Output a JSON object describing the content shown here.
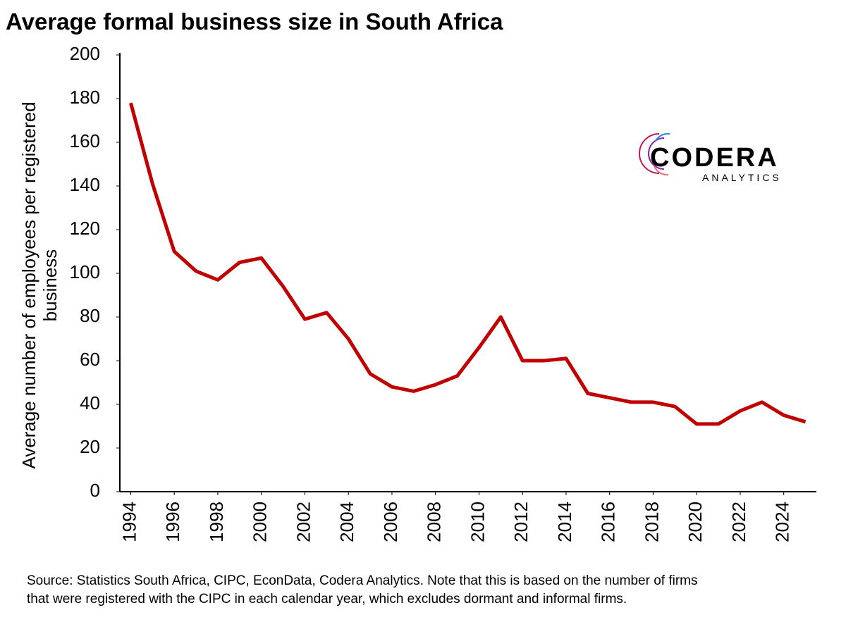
{
  "chart_data": {
    "type": "line",
    "title": "Average formal business size in South Africa",
    "y_label": [
      "Average number of employees per registered",
      "business"
    ],
    "x": [
      1994,
      1995,
      1996,
      1997,
      1998,
      1999,
      2000,
      2001,
      2002,
      2003,
      2004,
      2005,
      2006,
      2007,
      2008,
      2009,
      2010,
      2011,
      2012,
      2013,
      2014,
      2015,
      2016,
      2017,
      2018,
      2019,
      2020,
      2021,
      2022,
      2023,
      2024,
      2025
    ],
    "series": [
      {
        "name": "Average formal business size",
        "color": "#c00000",
        "values": [
          178,
          141,
          110,
          101,
          97,
          105,
          107,
          94,
          79,
          82,
          70,
          54,
          48,
          46,
          49,
          53,
          66,
          80,
          60,
          60,
          61,
          45,
          43,
          41,
          41,
          39,
          31,
          31,
          37,
          41,
          35,
          32
        ]
      }
    ],
    "xlim": [
      1993.5,
      2025.5
    ],
    "xticks": [
      1994,
      1996,
      1998,
      2000,
      2002,
      2004,
      2006,
      2008,
      2010,
      2012,
      2014,
      2016,
      2018,
      2020,
      2022,
      2024
    ],
    "ylim": [
      0,
      200
    ],
    "yticks": [
      0,
      20,
      40,
      60,
      80,
      100,
      120,
      140,
      160,
      180,
      200
    ],
    "grid": false,
    "logo": {
      "name": "CODERA",
      "subtitle": "ANALYTICS"
    },
    "source": [
      "Source: Statistics South Africa, CIPC, EconData, Codera Analytics. Note that this is based on the number of firms",
      "that were registered with the CIPC in each calendar year, which excludes dormant and informal firms."
    ]
  }
}
